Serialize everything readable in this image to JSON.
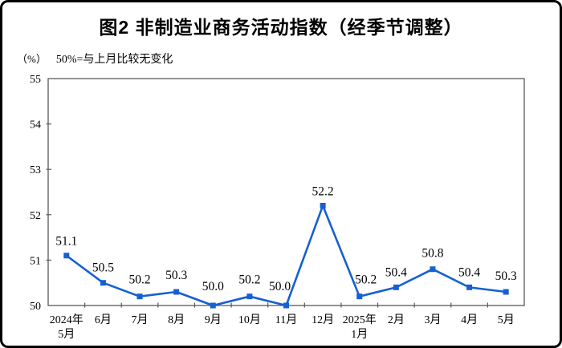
{
  "chart_data": {
    "type": "line",
    "title": "图2 非制造业商务活动指数（经季节调整）",
    "unit_label": "（%）",
    "note": "50%=与上月比较无变化",
    "categories": [
      [
        "2024年",
        "5月"
      ],
      "6月",
      "7月",
      "8月",
      "9月",
      "10月",
      "11月",
      "12月",
      [
        "2025年",
        "1月"
      ],
      "2月",
      "3月",
      "4月",
      "5月"
    ],
    "values": [
      51.1,
      50.5,
      50.2,
      50.3,
      50.0,
      50.2,
      50.0,
      52.2,
      50.2,
      50.4,
      50.8,
      50.4,
      50.3
    ],
    "data_labels": [
      "51.1",
      "50.5",
      "50.2",
      "50.3",
      "50.0",
      "50.2",
      "50.0",
      "52.2",
      "50.2",
      "50.4",
      "50.8",
      "50.4",
      "50.3"
    ],
    "xlabel": "",
    "ylabel": "",
    "ylim": [
      50,
      55
    ],
    "ytick_step": 1,
    "ytick_labels": [
      "50",
      "51",
      "52",
      "53",
      "54",
      "55"
    ],
    "grid": false,
    "legend": "none",
    "line_color": "#1560D2",
    "axis_color": "#595959",
    "marker": "square"
  }
}
